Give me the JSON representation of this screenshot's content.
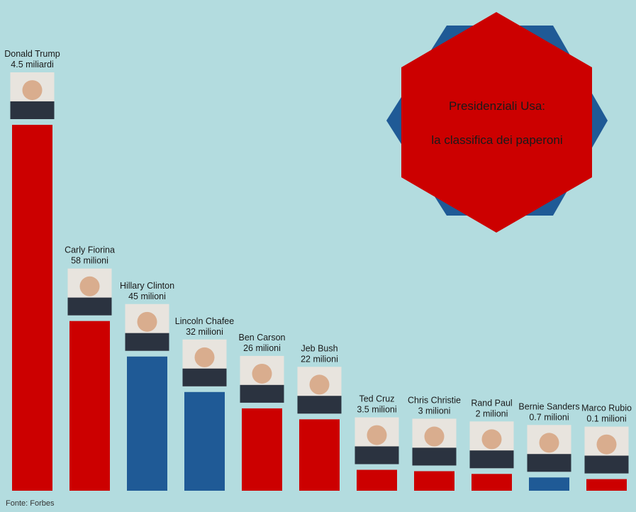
{
  "chart_data": {
    "type": "bar",
    "title_line1": "Presidenziali Usa:",
    "title_line2": "la classifica dei paperoni",
    "source": "Fonte: Forbes",
    "colors": {
      "republican": "#cc0000",
      "democrat": "#1f5a96",
      "background": "#b3dcdf"
    },
    "categories": [
      "Donald Trump",
      "Carly Fiorina",
      "Hillary Clinton",
      "Lincoln Chafee",
      "Ben Carson",
      "Jeb Bush",
      "Ted Cruz",
      "Chris Christie",
      "Rand Paul",
      "Bernie Sanders",
      "Marco Rubio"
    ],
    "value_labels": [
      "4.5 miliardi",
      "58 milioni",
      "45 milioni",
      "32 milioni",
      "26 milioni",
      "22 milioni",
      "3.5 milioni",
      "3 milioni",
      "2 milioni",
      "0.7 milioni",
      "0.1 milioni"
    ],
    "values_millions": [
      4500,
      58,
      45,
      32,
      26,
      22,
      3.5,
      3,
      2,
      0.7,
      0.1
    ],
    "parties": [
      "R",
      "R",
      "D",
      "D",
      "R",
      "R",
      "R",
      "R",
      "R",
      "D",
      "R"
    ]
  }
}
